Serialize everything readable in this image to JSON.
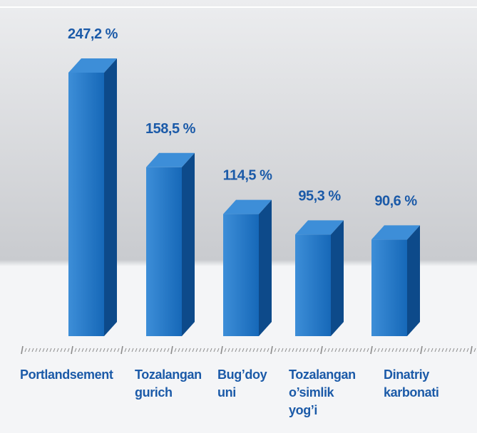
{
  "colors": {
    "bar_front": "#1668b8",
    "bar_side": "#0d4a8a",
    "bar_top": "#3d8ed8",
    "label": "#1b5aa8",
    "background_top": "#ecedef",
    "background_mid": "#c9cbcf",
    "background_bottom": "#f4f5f7",
    "axis_tick": "#8a8a8a"
  },
  "chart_data": {
    "type": "bar",
    "style": "3d",
    "categories": [
      "Portlandsement",
      "Tozalangan gurich",
      "Bug’doy uni",
      "Tozalangan o’simlik yog’i",
      "Dinatriy karbonati"
    ],
    "category_lines": [
      [
        "Portlandsement"
      ],
      [
        "Tozalangan",
        "gurich"
      ],
      [
        "Bug’doy",
        "uni"
      ],
      [
        "Tozalangan",
        "o’simlik",
        "yog’i"
      ],
      [
        "Dinatriy",
        "karbonati"
      ]
    ],
    "values": [
      247.2,
      158.5,
      114.5,
      95.3,
      90.6
    ],
    "value_labels": [
      "247,2 %",
      "158,5 %",
      "114,5 %",
      "95,3 %",
      "90,6 %"
    ],
    "title": "",
    "xlabel": "",
    "ylabel": "",
    "ylim": [
      0,
      260
    ],
    "grid": false,
    "legend": "none"
  }
}
